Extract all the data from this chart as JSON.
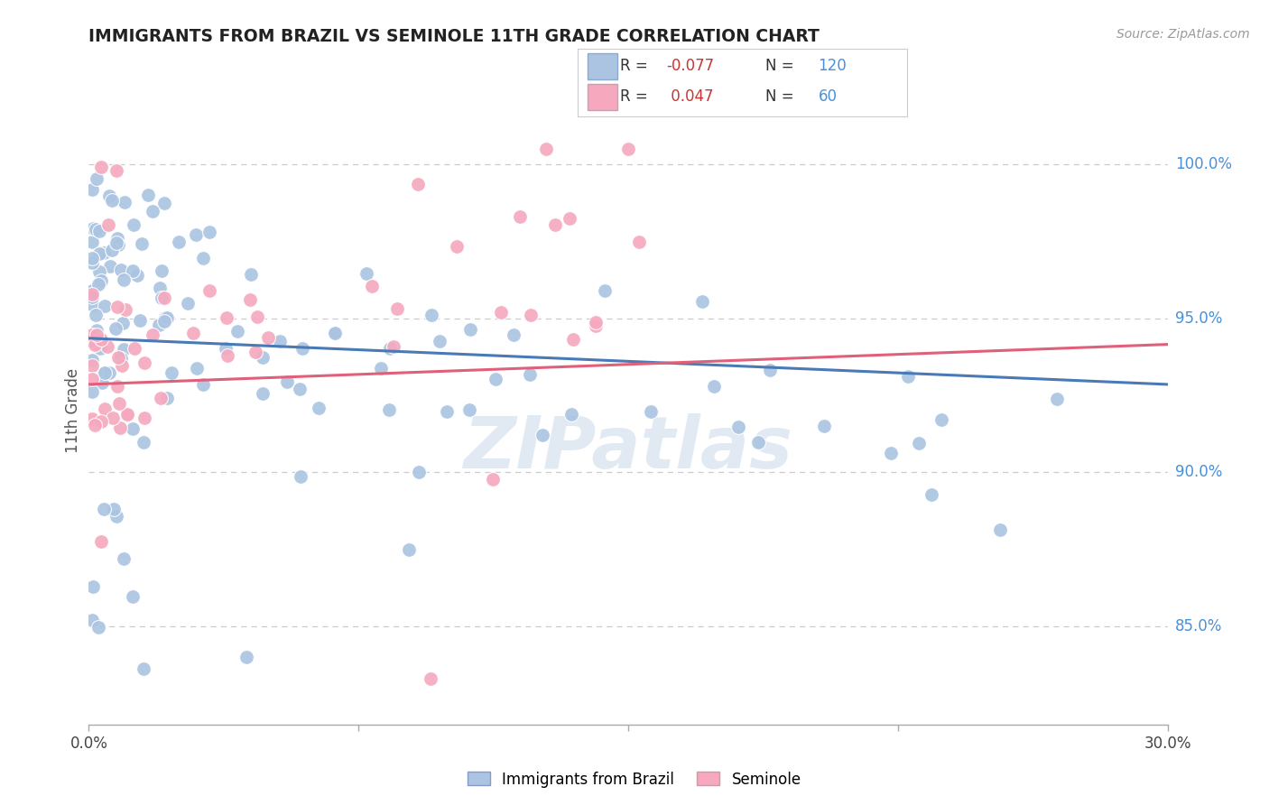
{
  "title": "IMMIGRANTS FROM BRAZIL VS SEMINOLE 11TH GRADE CORRELATION CHART",
  "source": "Source: ZipAtlas.com",
  "ylabel": "11th Grade",
  "yaxis_labels": [
    "100.0%",
    "95.0%",
    "90.0%",
    "85.0%"
  ],
  "yaxis_values": [
    1.0,
    0.95,
    0.9,
    0.85
  ],
  "xmin": 0.0,
  "xmax": 0.3,
  "ymin": 0.818,
  "ymax": 1.022,
  "legend_label_blue": "Immigrants from Brazil",
  "legend_label_pink": "Seminole",
  "blue_color": "#aac4e2",
  "pink_color": "#f5a8be",
  "blue_line_color": "#4a7ab5",
  "pink_line_color": "#e0607a",
  "watermark": "ZIPatlas",
  "background_color": "#ffffff",
  "grid_color": "#cccccc",
  "title_color": "#222222",
  "right_axis_color": "#4a90d9",
  "blue_trend_y0": 0.9435,
  "blue_trend_y1": 0.9285,
  "pink_trend_y0": 0.9285,
  "pink_trend_y1": 0.9415
}
